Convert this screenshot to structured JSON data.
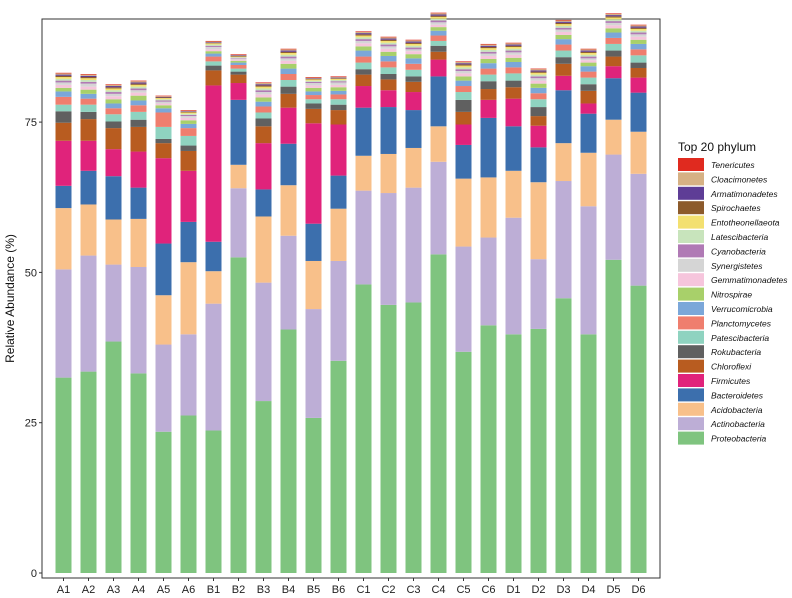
{
  "chart_data": {
    "type": "bar",
    "stacked": true,
    "title": "",
    "xlabel": "",
    "ylabel": "Relative Abundance (%)",
    "ylim": [
      0,
      92
    ],
    "yticks": [
      0,
      25,
      50,
      75
    ],
    "legend_title": "Top 20 phylum",
    "legend_position": "right",
    "categories": [
      "A1",
      "A2",
      "A3",
      "A4",
      "A5",
      "A6",
      "B1",
      "B2",
      "B3",
      "B4",
      "B5",
      "B6",
      "C1",
      "C2",
      "C3",
      "C4",
      "C5",
      "C6",
      "D1",
      "D2",
      "D3",
      "D4",
      "D5",
      "D6"
    ],
    "series": [
      {
        "name": "Proteobacteria",
        "color": "#7fc47f",
        "values": [
          32.5,
          33.5,
          38.5,
          33.2,
          23.5,
          26.2,
          23.7,
          52.5,
          28.6,
          40.5,
          25.8,
          35.3,
          48.0,
          44.6,
          45.0,
          53.0,
          36.8,
          41.2,
          39.7,
          40.6,
          45.7,
          39.7,
          52.1,
          47.8
        ]
      },
      {
        "name": "Actinobacteria",
        "color": "#bdaed6",
        "values": [
          18.0,
          19.3,
          12.8,
          17.7,
          14.5,
          13.5,
          21.1,
          11.5,
          19.7,
          15.6,
          18.1,
          16.6,
          15.6,
          18.6,
          19.1,
          15.4,
          17.5,
          14.6,
          19.4,
          11.6,
          19.5,
          21.3,
          17.5,
          18.6
        ]
      },
      {
        "name": "Acidobacteria",
        "color": "#f8c08a",
        "values": [
          10.2,
          8.5,
          7.5,
          8.0,
          8.2,
          12.0,
          5.4,
          3.9,
          11.0,
          8.4,
          8.0,
          8.7,
          5.8,
          6.5,
          6.6,
          5.9,
          11.3,
          10.0,
          7.8,
          12.8,
          6.3,
          8.9,
          5.8,
          7.0
        ]
      },
      {
        "name": "Bacteroidetes",
        "color": "#3c6fad",
        "values": [
          3.7,
          5.6,
          7.2,
          5.2,
          8.6,
          6.7,
          4.9,
          10.8,
          4.5,
          6.9,
          6.2,
          5.5,
          8.0,
          7.8,
          6.3,
          8.3,
          5.6,
          9.9,
          7.4,
          5.8,
          8.8,
          6.5,
          6.9,
          6.5
        ]
      },
      {
        "name": "Firmicutes",
        "color": "#e0237b",
        "values": [
          7.5,
          5.0,
          4.5,
          6.0,
          14.2,
          8.5,
          26.0,
          2.8,
          7.7,
          6.0,
          16.7,
          8.5,
          3.6,
          2.8,
          3.0,
          2.8,
          3.4,
          3.0,
          4.6,
          3.6,
          2.4,
          1.7,
          2.0,
          2.5
        ]
      },
      {
        "name": "Chloroflexi",
        "color": "#b85c20",
        "values": [
          3.0,
          3.6,
          3.5,
          4.1,
          2.5,
          3.3,
          2.5,
          1.4,
          2.8,
          2.3,
          2.4,
          2.4,
          1.9,
          1.8,
          1.7,
          1.3,
          2.1,
          1.8,
          1.9,
          1.6,
          2.0,
          2.1,
          1.6,
          1.6
        ]
      },
      {
        "name": "Rokubacteria",
        "color": "#606060",
        "values": [
          1.9,
          1.2,
          1.1,
          1.2,
          0.7,
          0.9,
          0.8,
          0.5,
          1.3,
          1.2,
          0.9,
          0.9,
          0.9,
          0.9,
          0.9,
          1.0,
          2.0,
          1.3,
          1.1,
          1.5,
          1.1,
          1.1,
          1.0,
          0.9
        ]
      },
      {
        "name": "Patescibacteria",
        "color": "#8fd3c0",
        "values": [
          1.1,
          1.2,
          1.2,
          1.3,
          2.0,
          1.6,
          0.7,
          0.5,
          1.0,
          1.1,
          0.7,
          0.9,
          1.1,
          1.1,
          1.1,
          0.8,
          1.3,
          1.1,
          1.2,
          1.3,
          1.1,
          1.1,
          1.1,
          1.2
        ]
      },
      {
        "name": "Planctomycetes",
        "color": "#ef7e6e",
        "values": [
          1.3,
          1.0,
          1.0,
          1.1,
          2.4,
          1.3,
          0.8,
          0.6,
          1.0,
          1.0,
          0.7,
          0.8,
          1.0,
          1.0,
          1.0,
          0.9,
          1.0,
          1.0,
          1.0,
          1.0,
          1.0,
          1.0,
          1.0,
          1.0
        ]
      },
      {
        "name": "Verrucomicrobia",
        "color": "#7ba7d9",
        "values": [
          0.9,
          0.8,
          0.8,
          0.8,
          0.7,
          0.7,
          0.5,
          0.4,
          0.8,
          0.9,
          0.6,
          0.6,
          1.0,
          0.9,
          0.9,
          0.8,
          0.9,
          0.9,
          0.9,
          0.9,
          0.9,
          0.9,
          0.9,
          0.9
        ]
      },
      {
        "name": "Nitrospirae",
        "color": "#a8d06a",
        "values": [
          0.6,
          0.7,
          0.7,
          0.8,
          0.5,
          0.6,
          0.4,
          0.3,
          0.7,
          0.8,
          0.6,
          0.6,
          0.7,
          0.7,
          0.7,
          0.6,
          0.7,
          0.7,
          0.7,
          0.7,
          0.7,
          0.6,
          0.7,
          0.7
        ]
      },
      {
        "name": "Gemmatimonadetes",
        "color": "#f6c5dc",
        "values": [
          0.5,
          0.5,
          0.5,
          0.5,
          0.3,
          0.4,
          0.3,
          0.2,
          0.5,
          0.5,
          0.4,
          0.4,
          0.5,
          0.5,
          0.5,
          0.4,
          0.5,
          0.5,
          0.5,
          0.5,
          0.5,
          0.4,
          0.5,
          0.5
        ]
      },
      {
        "name": "Synergistetes",
        "color": "#d5d5d5",
        "values": [
          0.4,
          0.5,
          0.4,
          0.4,
          0.3,
          0.3,
          0.4,
          0.2,
          0.4,
          0.4,
          0.4,
          0.4,
          0.4,
          0.4,
          0.3,
          0.4,
          0.4,
          0.4,
          0.4,
          0.4,
          0.4,
          0.3,
          0.4,
          0.4
        ]
      },
      {
        "name": "Cyanobacteria",
        "color": "#b07ab5",
        "values": [
          0.3,
          0.3,
          0.3,
          0.3,
          0.2,
          0.2,
          0.2,
          0.1,
          0.3,
          0.3,
          0.2,
          0.2,
          0.3,
          0.3,
          0.3,
          0.3,
          0.3,
          0.3,
          0.3,
          0.3,
          0.3,
          0.3,
          0.3,
          0.3
        ]
      },
      {
        "name": "Latescibacteria",
        "color": "#c8e4bc",
        "values": [
          0.3,
          0.3,
          0.3,
          0.3,
          0.2,
          0.2,
          0.2,
          0.1,
          0.3,
          0.3,
          0.2,
          0.2,
          0.3,
          0.3,
          0.3,
          0.3,
          0.3,
          0.3,
          0.3,
          0.3,
          0.3,
          0.3,
          0.3,
          0.3
        ]
      },
      {
        "name": "Entotheonellaeota",
        "color": "#f3e070",
        "values": [
          0.3,
          0.3,
          0.3,
          0.3,
          0.2,
          0.2,
          0.2,
          0.1,
          0.3,
          0.3,
          0.2,
          0.2,
          0.3,
          0.3,
          0.3,
          0.3,
          0.3,
          0.3,
          0.3,
          0.3,
          0.3,
          0.3,
          0.3,
          0.3
        ]
      },
      {
        "name": "Spirochaetes",
        "color": "#8c5a2b",
        "values": [
          0.2,
          0.2,
          0.2,
          0.2,
          0.1,
          0.1,
          0.1,
          0.1,
          0.2,
          0.2,
          0.1,
          0.1,
          0.2,
          0.2,
          0.2,
          0.2,
          0.2,
          0.2,
          0.2,
          0.2,
          0.2,
          0.2,
          0.2,
          0.2
        ]
      },
      {
        "name": "Armatimonadetes",
        "color": "#5e3d96",
        "values": [
          0.2,
          0.2,
          0.2,
          0.2,
          0.1,
          0.1,
          0.1,
          0.1,
          0.2,
          0.2,
          0.1,
          0.1,
          0.2,
          0.2,
          0.2,
          0.2,
          0.2,
          0.2,
          0.2,
          0.2,
          0.2,
          0.2,
          0.2,
          0.2
        ]
      },
      {
        "name": "Cloacimonetes",
        "color": "#d6b184",
        "values": [
          0.2,
          0.2,
          0.2,
          0.2,
          0.1,
          0.1,
          0.1,
          0.1,
          0.2,
          0.2,
          0.1,
          0.1,
          0.2,
          0.2,
          0.2,
          0.2,
          0.2,
          0.2,
          0.2,
          0.2,
          0.2,
          0.2,
          0.2,
          0.2
        ]
      },
      {
        "name": "Tenericutes",
        "color": "#e02a1f",
        "values": [
          0.1,
          0.1,
          0.1,
          0.1,
          0.1,
          0.1,
          0.1,
          0.1,
          0.1,
          0.1,
          0.1,
          0.1,
          0.1,
          0.1,
          0.1,
          0.1,
          0.1,
          0.1,
          0.1,
          0.1,
          0.1,
          0.1,
          0.1,
          0.1
        ]
      }
    ]
  }
}
